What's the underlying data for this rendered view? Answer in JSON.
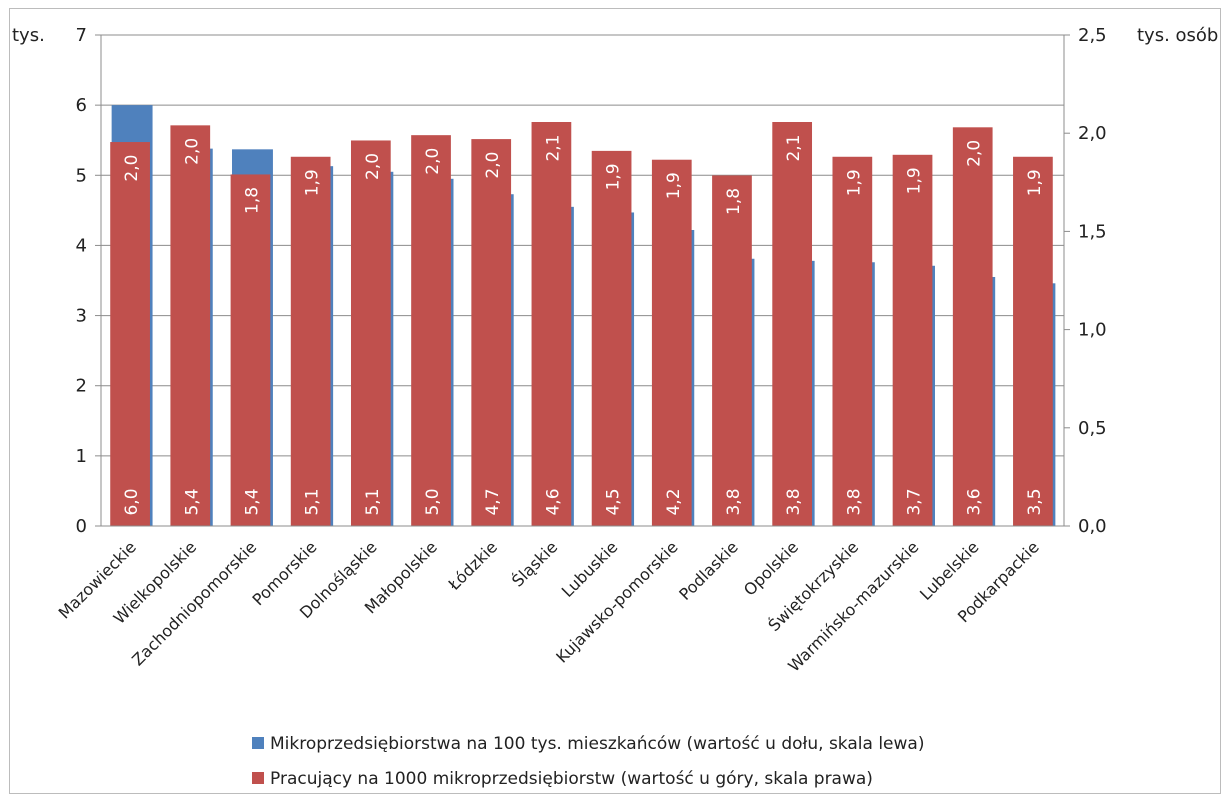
{
  "chart_data": {
    "type": "bar",
    "left_axis_unit": "tys.",
    "right_axis_unit": "tys. osób",
    "left_ylim": [
      0,
      7
    ],
    "right_ylim": [
      0,
      2.5
    ],
    "left_ticks": [
      "0",
      "1",
      "2",
      "3",
      "4",
      "5",
      "6",
      "7"
    ],
    "right_ticks": [
      "0,0",
      "0,5",
      "1,0",
      "1,5",
      "2,0",
      "2,5"
    ],
    "grid": "horizontal",
    "legend_position": "bottom",
    "categories": [
      "Mazowieckie",
      "Wielkopolskie",
      "Zachodniopomorskie",
      "Pomorskie",
      "Dolnośląskie",
      "Małopolskie",
      "Łódzkie",
      "Śląskie",
      "Lubuskie",
      "Kujawsko-pomorskie",
      "Podlaskie",
      "Opolskie",
      "Świętokrzyskie",
      "Warmińsko-mazurskie",
      "Lubelskie",
      "Podkarpackie"
    ],
    "series": [
      {
        "name": "Mikroprzedsiębiorstwa na 100 tys. mieszkańców (wartość u dołu, skala lewa)",
        "axis": "left",
        "color": "#4f81bd",
        "values": [
          6.0,
          5.4,
          5.4,
          5.1,
          5.1,
          5.0,
          4.7,
          4.6,
          4.5,
          4.2,
          3.8,
          3.8,
          3.8,
          3.7,
          3.6,
          3.5
        ],
        "plot_values": [
          6.0,
          5.38,
          5.37,
          5.13,
          5.05,
          4.95,
          4.73,
          4.55,
          4.47,
          4.22,
          3.81,
          3.78,
          3.76,
          3.71,
          3.55,
          3.46
        ],
        "labels": [
          "6,0",
          "5,4",
          "5,4",
          "5,1",
          "5,1",
          "5,0",
          "4,7",
          "4,6",
          "4,5",
          "4,2",
          "3,8",
          "3,8",
          "3,8",
          "3,7",
          "3,6",
          "3,5"
        ]
      },
      {
        "name": "Pracujący na 1000 mikroprzedsiębiorstw (wartość u góry, skala prawa)",
        "axis": "right",
        "color": "#c0504d",
        "values": [
          2.0,
          2.0,
          1.8,
          1.9,
          2.0,
          2.0,
          2.0,
          2.1,
          1.9,
          1.9,
          1.8,
          2.1,
          1.9,
          1.9,
          2.0,
          1.9
        ],
        "plot_values": [
          1.955,
          2.04,
          1.79,
          1.88,
          1.963,
          1.99,
          1.97,
          2.057,
          1.91,
          1.865,
          1.785,
          2.057,
          1.88,
          1.89,
          2.03,
          1.88
        ],
        "labels": [
          "2,0",
          "2,0",
          "1,8",
          "1,9",
          "2,0",
          "2,0",
          "2,0",
          "2,1",
          "1,9",
          "1,9",
          "1,8",
          "2,1",
          "1,9",
          "1,9",
          "2,0",
          "1,9"
        ]
      }
    ]
  }
}
